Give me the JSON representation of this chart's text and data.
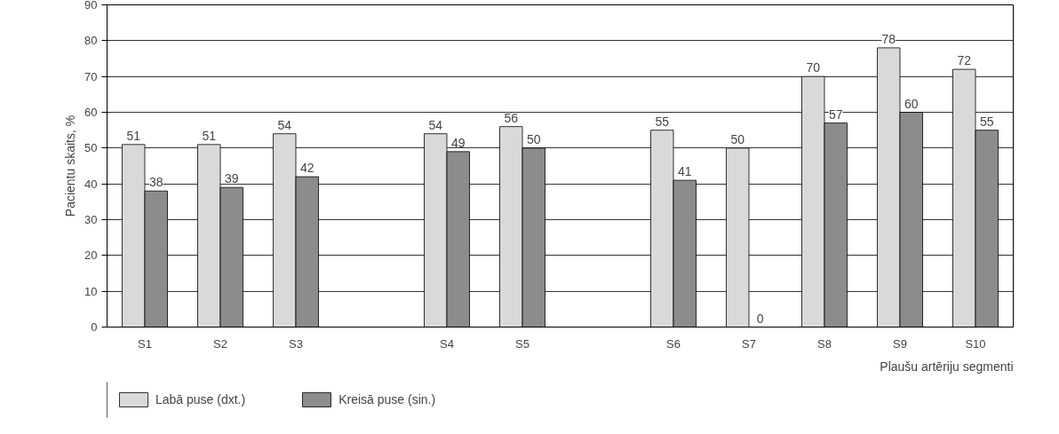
{
  "chart_data": {
    "type": "bar",
    "xlabel": "Plaušu artēriju segmenti",
    "ylabel": "Pacientu skaits, %",
    "categories": [
      "S1",
      "S2",
      "S3",
      null,
      "S4",
      "S5",
      null,
      "S6",
      "S7",
      "S8",
      "S9",
      "S10"
    ],
    "series": [
      {
        "name": "Labā puse (dxt.)",
        "color": "#d9d9d9",
        "values": [
          51,
          51,
          54,
          null,
          54,
          56,
          null,
          55,
          50,
          70,
          78,
          72
        ]
      },
      {
        "name": "Kreisā puse (sin.)",
        "color": "#8c8c8c",
        "values": [
          38,
          39,
          42,
          null,
          49,
          50,
          null,
          41,
          0,
          57,
          60,
          55
        ]
      }
    ],
    "ylim": [
      0,
      90
    ],
    "yticks": [
      0,
      10,
      20,
      30,
      40,
      50,
      60,
      70,
      80,
      90
    ],
    "grid": "y",
    "legend": "bottom left",
    "data_labels": true
  }
}
